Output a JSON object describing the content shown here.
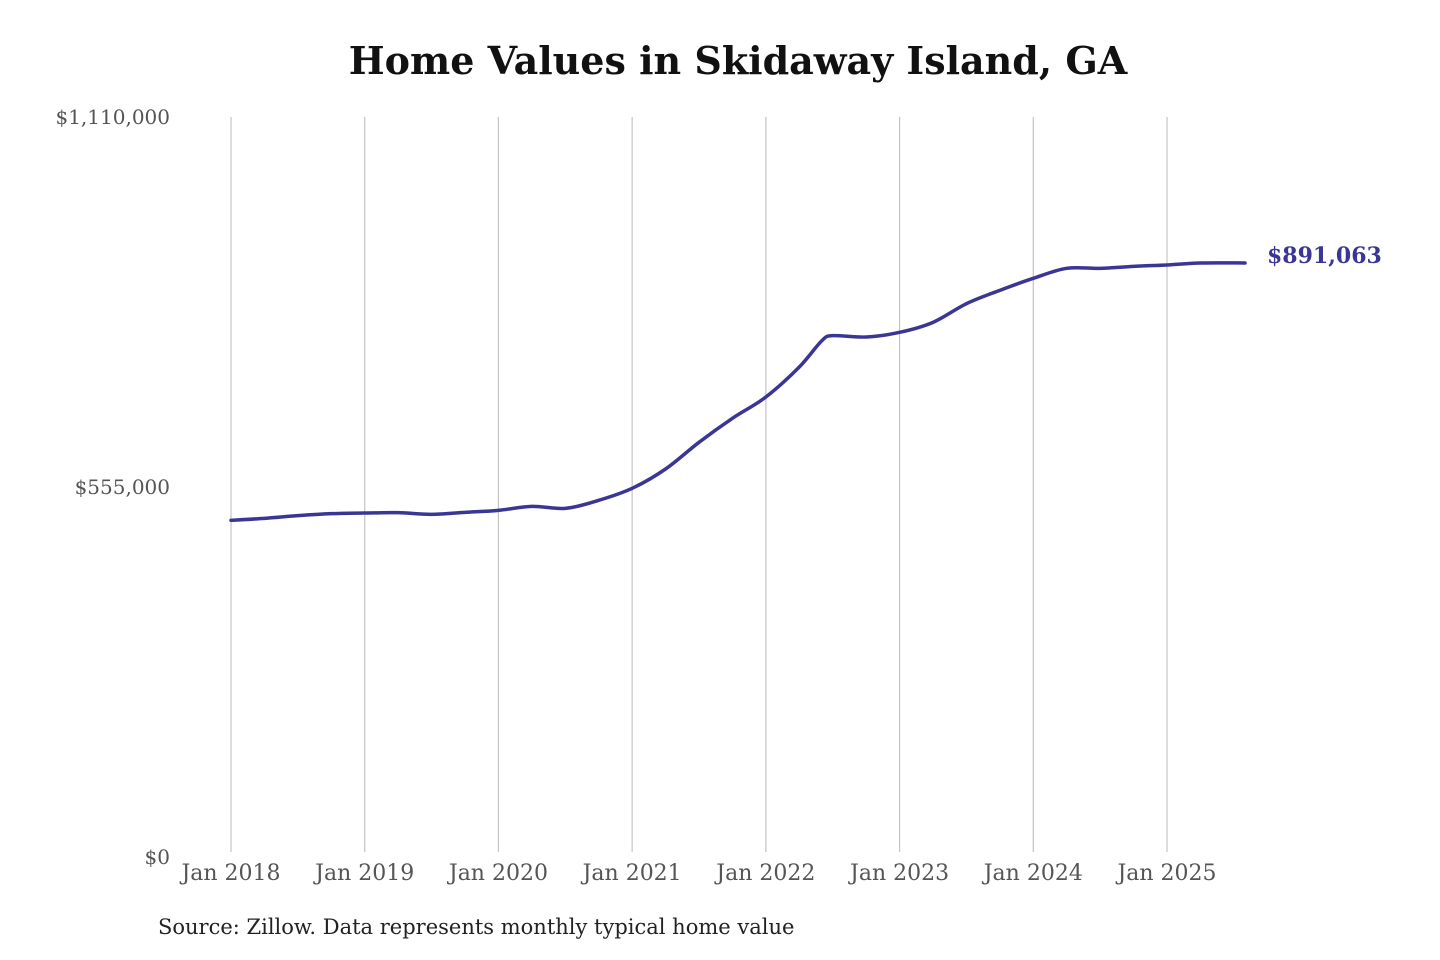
{
  "chart_data": {
    "type": "line",
    "title": "Home Values in Skidaway Island, GA",
    "source": "Source: Zillow. Data represents monthly typical home value",
    "xlabel": "",
    "ylabel": "",
    "ylim": [
      0,
      1110000
    ],
    "yticks": [
      0,
      555000,
      1110000
    ],
    "ytick_labels": [
      "$0",
      "$555,000",
      "$1,110,000"
    ],
    "xticks": [
      "2018-01",
      "2019-01",
      "2020-01",
      "2021-01",
      "2022-01",
      "2023-01",
      "2024-01",
      "2025-01"
    ],
    "xtick_labels": [
      "Jan 2018",
      "Jan 2019",
      "Jan 2020",
      "Jan 2021",
      "Jan 2022",
      "Jan 2023",
      "Jan 2024",
      "Jan 2025"
    ],
    "xlim": [
      "2018-01",
      "2025-08"
    ],
    "grid": "vertical",
    "line_color": "#3b3596",
    "end_label": "$891,063",
    "series": [
      {
        "points": [
          [
            "2018-01",
            505000
          ],
          [
            "2018-04",
            508000
          ],
          [
            "2018-07",
            512000
          ],
          [
            "2018-10",
            515000
          ],
          [
            "2019-01",
            516000
          ],
          [
            "2019-04",
            516500
          ],
          [
            "2019-07",
            514000
          ],
          [
            "2019-10",
            517000
          ],
          [
            "2020-01",
            520000
          ],
          [
            "2020-04",
            526000
          ],
          [
            "2020-07",
            523000
          ],
          [
            "2020-10",
            535000
          ],
          [
            "2021-01",
            553000
          ],
          [
            "2021-04",
            582000
          ],
          [
            "2021-07",
            622000
          ],
          [
            "2021-10",
            658000
          ],
          [
            "2022-01",
            690000
          ],
          [
            "2022-04",
            735000
          ],
          [
            "2022-06",
            774000
          ],
          [
            "2022-07",
            782000
          ],
          [
            "2022-10",
            780000
          ],
          [
            "2023-01",
            787000
          ],
          [
            "2023-04",
            802000
          ],
          [
            "2023-07",
            830000
          ],
          [
            "2023-10",
            850000
          ],
          [
            "2024-01",
            868000
          ],
          [
            "2024-04",
            883000
          ],
          [
            "2024-07",
            883000
          ],
          [
            "2024-10",
            886000
          ],
          [
            "2025-01",
            888000
          ],
          [
            "2025-04",
            891000
          ],
          [
            "2025-08",
            891063
          ]
        ]
      }
    ]
  }
}
